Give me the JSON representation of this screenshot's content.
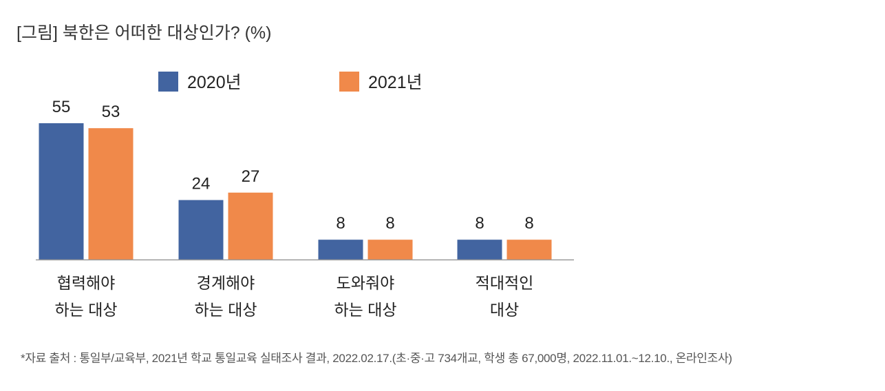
{
  "chart_data": {
    "type": "bar",
    "title": "[그림] 북한은 어떠한 대상인가? (%)",
    "categories": [
      [
        "협력해야",
        "하는 대상"
      ],
      [
        "경계해야",
        "하는 대상"
      ],
      [
        "도와줘야",
        "하는 대상"
      ],
      [
        "적대적인",
        "대상"
      ]
    ],
    "series": [
      {
        "name": "2020년",
        "color": "#4264a0",
        "values": [
          55,
          24,
          8,
          8
        ]
      },
      {
        "name": "2021년",
        "color": "#f0894a",
        "values": [
          53,
          27,
          8,
          8
        ]
      }
    ],
    "xlabel": "",
    "ylabel": "",
    "ylim": [
      0,
      60
    ],
    "grid": false,
    "legend": "top-center",
    "source": "*자료 출처 : 통일부/교육부, 2021년 학교 통일교육 실태조사 결과, 2022.02.17.(초·중·고 734개교, 학생 총 67,000명, 2022.11.01.~12.10., 온라인조사)"
  }
}
